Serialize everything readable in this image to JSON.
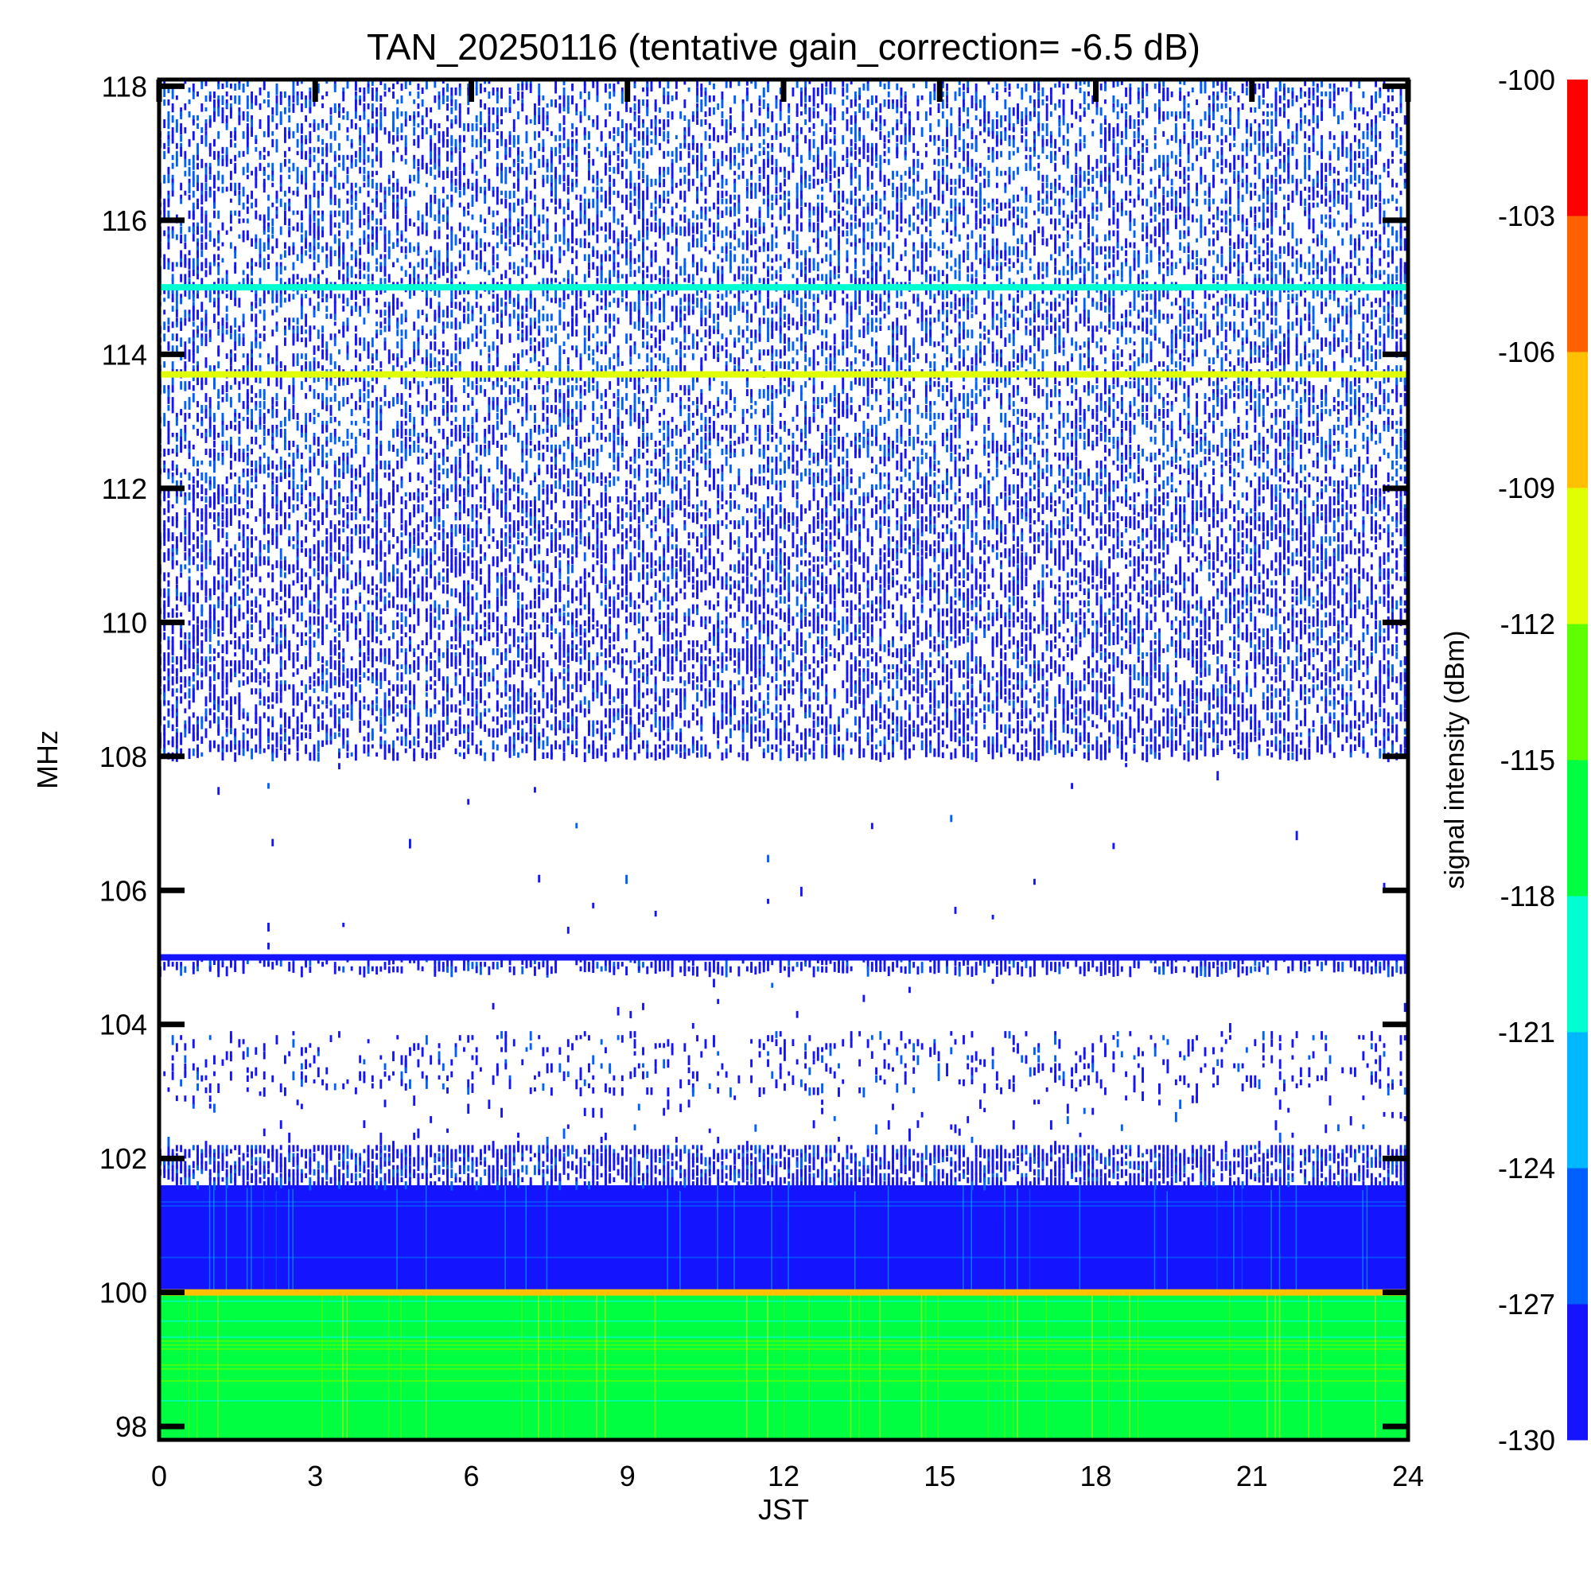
{
  "chart_data": {
    "type": "heatmap",
    "title": "TAN_20250116 (tentative gain_correction= -6.5 dB)",
    "xlabel": "JST",
    "ylabel": "MHz",
    "xlim": [
      0,
      24
    ],
    "ylim": [
      97.8,
      118.1
    ],
    "x_ticks": [
      "0",
      "3",
      "6",
      "9",
      "12",
      "15",
      "18",
      "21",
      "24"
    ],
    "y_ticks": [
      "98",
      "100",
      "102",
      "104",
      "106",
      "108",
      "110",
      "112",
      "114",
      "116",
      "118"
    ],
    "colorbar": {
      "label": "signal intensity (dBm)",
      "range": [
        -130,
        -100
      ],
      "ticks": [
        "-100",
        "-103",
        "-106",
        "-109",
        "-112",
        "-115",
        "-118",
        "-121",
        "-124",
        "-127",
        "-130"
      ],
      "colors": [
        "#1414ff",
        "#0060ff",
        "#00b8ff",
        "#00ffd0",
        "#00ff40",
        "#60ff00",
        "#e0ff00",
        "#ffc000",
        "#ff6000",
        "#ff0000"
      ]
    },
    "regions": [
      {
        "f_min": 97.8,
        "f_max": 100.0,
        "level_dbm": -117,
        "density": 1.0
      },
      {
        "f_min": 100.0,
        "f_max": 101.6,
        "level_dbm": -128,
        "density": 1.0
      },
      {
        "f_min": 101.6,
        "f_max": 102.2,
        "level_dbm": -129,
        "density": 0.6
      },
      {
        "f_min": 102.2,
        "f_max": 103.0,
        "level_dbm": -129,
        "density": 0.03
      },
      {
        "f_min": 103.0,
        "f_max": 103.9,
        "level_dbm": -129,
        "density": 0.12
      },
      {
        "f_min": 103.9,
        "f_max": 104.8,
        "level_dbm": -129,
        "density": 0.003
      },
      {
        "f_min": 104.8,
        "f_max": 105.0,
        "level_dbm": -129,
        "density": 0.5
      },
      {
        "f_min": 105.1,
        "f_max": 107.9,
        "level_dbm": -129,
        "density": 0.002
      },
      {
        "f_min": 108.0,
        "f_max": 112.0,
        "level_dbm": -129,
        "density": 0.4
      },
      {
        "f_min": 112.0,
        "f_max": 118.1,
        "level_dbm": -128,
        "density": 0.35
      }
    ],
    "lines": [
      {
        "freq": 100.0,
        "level_dbm": -107
      },
      {
        "freq": 105.0,
        "level_dbm": -128
      },
      {
        "freq": 113.7,
        "level_dbm": -111
      },
      {
        "freq": 115.0,
        "level_dbm": -120
      }
    ]
  }
}
